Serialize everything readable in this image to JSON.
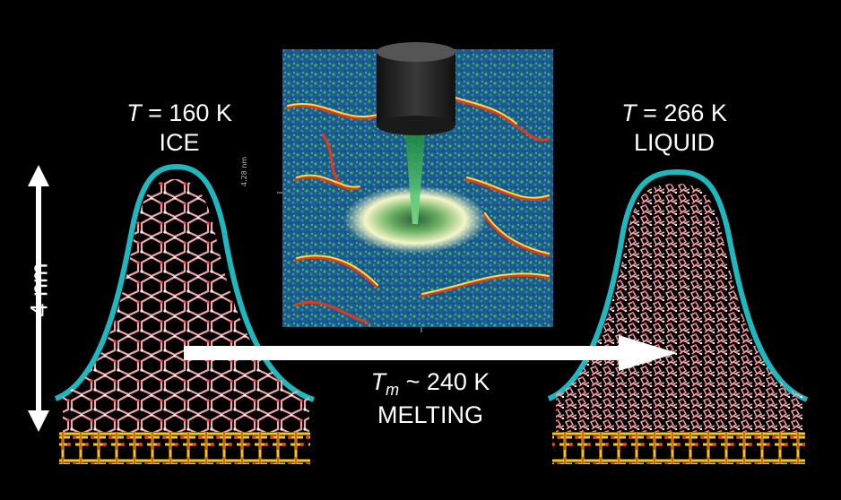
{
  "left": {
    "temp_symbol": "T",
    "temp_value": " = 160 K",
    "phase": "ICE"
  },
  "right": {
    "temp_symbol": "T",
    "temp_value": " = 266 K",
    "phase": "LIQUID"
  },
  "center": {
    "temp_symbol": "T",
    "temp_subscript": "m",
    "temp_value": " ~ 240 K",
    "phase": "MELTING"
  },
  "scale_label": "4 nm",
  "afm_axis_tick": "4.28 nm",
  "colors": {
    "background": "#000000",
    "membrane": "#1fb8bf",
    "water": "#e8a0a6",
    "substrate": "#f2c81e",
    "arrow": "#ffffff",
    "tip": "#2a2a2a",
    "beam": "#3fd27a"
  }
}
